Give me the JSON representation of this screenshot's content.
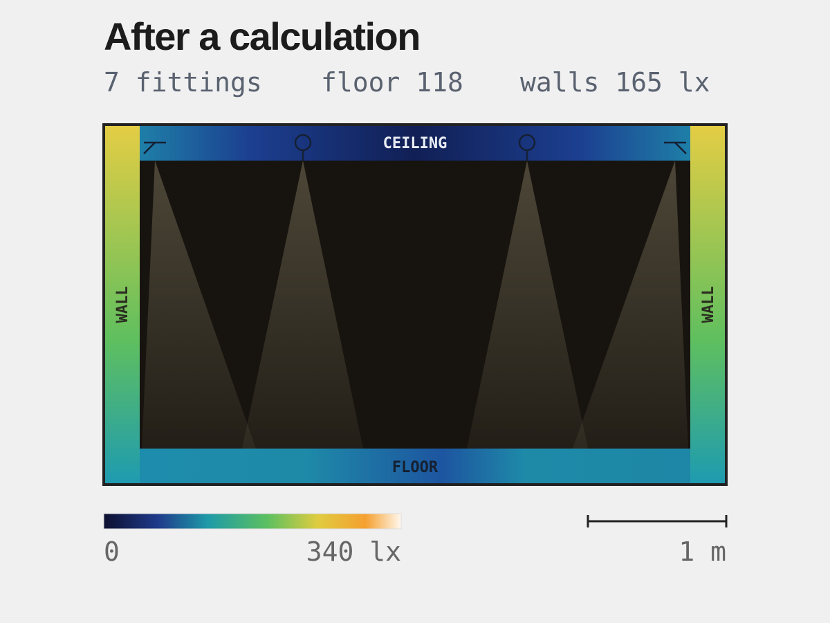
{
  "header": {
    "title": "After a calculation",
    "stats": [
      "7 fittings",
      "floor 118",
      "walls 165 lx"
    ]
  },
  "room": {
    "ceiling": "CEILING",
    "floor": "FLOOR",
    "left_wall": "WALL",
    "right_wall": "WALL"
  },
  "legend": {
    "min_label": "0",
    "max_label": "340 lx"
  },
  "scale_bar": {
    "label": "1 m"
  }
}
